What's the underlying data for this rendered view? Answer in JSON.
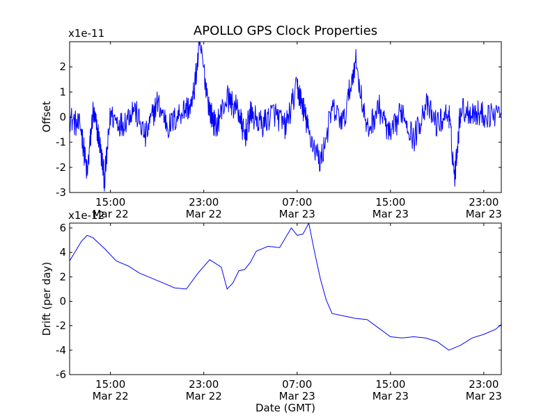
{
  "title": "APOLLO GPS Clock Properties",
  "colors": {
    "series": "#0000ff",
    "axes": "#000000",
    "background": "#ffffff"
  },
  "chart_data": [
    {
      "type": "line",
      "ylabel": "Offset",
      "multiplier_label": "x1e-11",
      "ylim": [
        -3,
        3
      ],
      "yticks": [
        -3,
        -2,
        -1,
        0,
        1,
        2
      ],
      "xlim": [
        "2013-03-22 11:30",
        "2013-03-24 00:30"
      ],
      "xticks": [
        {
          "time": "2013-03-22 15:00",
          "label_top": "15:00",
          "label_bottom": "Mar 22"
        },
        {
          "time": "2013-03-22 23:00",
          "label_top": "23:00",
          "label_bottom": "Mar 22"
        },
        {
          "time": "2013-03-23 07:00",
          "label_top": "07:00",
          "label_bottom": "Mar 23"
        },
        {
          "time": "2013-03-23 15:00",
          "label_top": "15:00",
          "label_bottom": "Mar 23"
        },
        {
          "time": "2013-03-23 23:00",
          "label_top": "23:00",
          "label_bottom": "Mar 23"
        }
      ],
      "series": [
        {
          "color": "#0000ff",
          "x": [
            "2013-03-22 11:30",
            "2013-03-22 12:30",
            "2013-03-22 13:00",
            "2013-03-22 13:30",
            "2013-03-22 14:00",
            "2013-03-22 14:30",
            "2013-03-22 15:00",
            "2013-03-22 16:00",
            "2013-03-22 17:00",
            "2013-03-22 18:00",
            "2013-03-22 19:00",
            "2013-03-22 20:00",
            "2013-03-22 21:00",
            "2013-03-22 22:00",
            "2013-03-22 22:40",
            "2013-03-22 23:30",
            "2013-03-23 00:00",
            "2013-03-23 01:00",
            "2013-03-23 02:00",
            "2013-03-23 02:30",
            "2013-03-23 03:00",
            "2013-03-23 04:00",
            "2013-03-23 05:00",
            "2013-03-23 06:00",
            "2013-03-23 07:00",
            "2013-03-23 07:30",
            "2013-03-23 08:00",
            "2013-03-23 09:00",
            "2013-03-23 10:00",
            "2013-03-23 11:00",
            "2013-03-23 12:00",
            "2013-03-23 13:00",
            "2013-03-23 14:00",
            "2013-03-23 15:00",
            "2013-03-23 16:00",
            "2013-03-23 17:00",
            "2013-03-23 18:00",
            "2013-03-23 19:00",
            "2013-03-23 20:00",
            "2013-03-23 20:30",
            "2013-03-23 21:00",
            "2013-03-23 22:00",
            "2013-03-23 23:00",
            "2013-03-24 00:30"
          ],
          "y": [
            0.0,
            -0.5,
            -2.3,
            0.2,
            -0.8,
            -2.5,
            0.1,
            -0.3,
            0.4,
            -0.8,
            0.6,
            -0.4,
            0.2,
            0.5,
            2.9,
            0.3,
            -0.4,
            0.8,
            0.2,
            -0.8,
            0.1,
            -0.3,
            0.2,
            -0.4,
            1.2,
            0.4,
            -0.6,
            -1.8,
            0.3,
            -0.2,
            2.3,
            -0.6,
            0.4,
            -0.8,
            0.3,
            -0.9,
            0.5,
            -0.3,
            0.2,
            -2.4,
            0.3,
            0.2,
            0.1,
            0.2
          ]
        }
      ]
    },
    {
      "type": "line",
      "ylabel": "Drift (per day)",
      "xlabel": "Date (GMT)",
      "multiplier_label": "x1e-12",
      "ylim": [
        -6,
        6.4
      ],
      "yticks": [
        -6,
        -4,
        -2,
        0,
        2,
        4,
        6
      ],
      "xlim": [
        "2013-03-22 11:30",
        "2013-03-24 00:30"
      ],
      "xticks": [
        {
          "time": "2013-03-22 15:00",
          "label_top": "15:00",
          "label_bottom": "Mar 22"
        },
        {
          "time": "2013-03-22 23:00",
          "label_top": "23:00",
          "label_bottom": "Mar 22"
        },
        {
          "time": "2013-03-23 07:00",
          "label_top": "07:00",
          "label_bottom": "Mar 23"
        },
        {
          "time": "2013-03-23 15:00",
          "label_top": "15:00",
          "label_bottom": "Mar 23"
        },
        {
          "time": "2013-03-23 23:00",
          "label_top": "23:00",
          "label_bottom": "Mar 23"
        }
      ],
      "series": [
        {
          "color": "#0000ff",
          "x": [
            "2013-03-22 11:30",
            "2013-03-22 12:30",
            "2013-03-22 13:00",
            "2013-03-22 13:30",
            "2013-03-22 14:30",
            "2013-03-22 15:30",
            "2013-03-22 16:30",
            "2013-03-22 17:30",
            "2013-03-22 18:30",
            "2013-03-22 19:30",
            "2013-03-22 20:30",
            "2013-03-22 21:30",
            "2013-03-22 22:30",
            "2013-03-22 23:30",
            "2013-03-23 00:30",
            "2013-03-23 01:00",
            "2013-03-23 01:30",
            "2013-03-23 02:00",
            "2013-03-23 02:30",
            "2013-03-23 03:00",
            "2013-03-23 03:30",
            "2013-03-23 04:30",
            "2013-03-23 05:30",
            "2013-03-23 06:30",
            "2013-03-23 07:00",
            "2013-03-23 07:30",
            "2013-03-23 08:00",
            "2013-03-23 08:30",
            "2013-03-23 09:00",
            "2013-03-23 09:30",
            "2013-03-23 10:00",
            "2013-03-23 11:00",
            "2013-03-23 12:00",
            "2013-03-23 13:00",
            "2013-03-23 14:00",
            "2013-03-23 15:00",
            "2013-03-23 16:00",
            "2013-03-23 17:00",
            "2013-03-23 18:00",
            "2013-03-23 19:00",
            "2013-03-23 20:00",
            "2013-03-23 21:00",
            "2013-03-23 22:00",
            "2013-03-23 23:00",
            "2013-03-24 00:00",
            "2013-03-24 00:30"
          ],
          "y": [
            3.3,
            4.9,
            5.4,
            5.2,
            4.3,
            3.3,
            2.9,
            2.3,
            1.9,
            1.5,
            1.1,
            1.0,
            2.3,
            3.4,
            2.8,
            1.0,
            1.5,
            2.5,
            2.6,
            3.2,
            4.1,
            4.5,
            4.4,
            6.0,
            5.4,
            5.5,
            6.4,
            4.0,
            1.8,
            0.1,
            -1.0,
            -1.2,
            -1.4,
            -1.5,
            -2.2,
            -2.9,
            -3.0,
            -2.9,
            -3.0,
            -3.3,
            -4.0,
            -3.6,
            -3.0,
            -2.7,
            -2.3,
            -1.9
          ]
        }
      ]
    }
  ]
}
